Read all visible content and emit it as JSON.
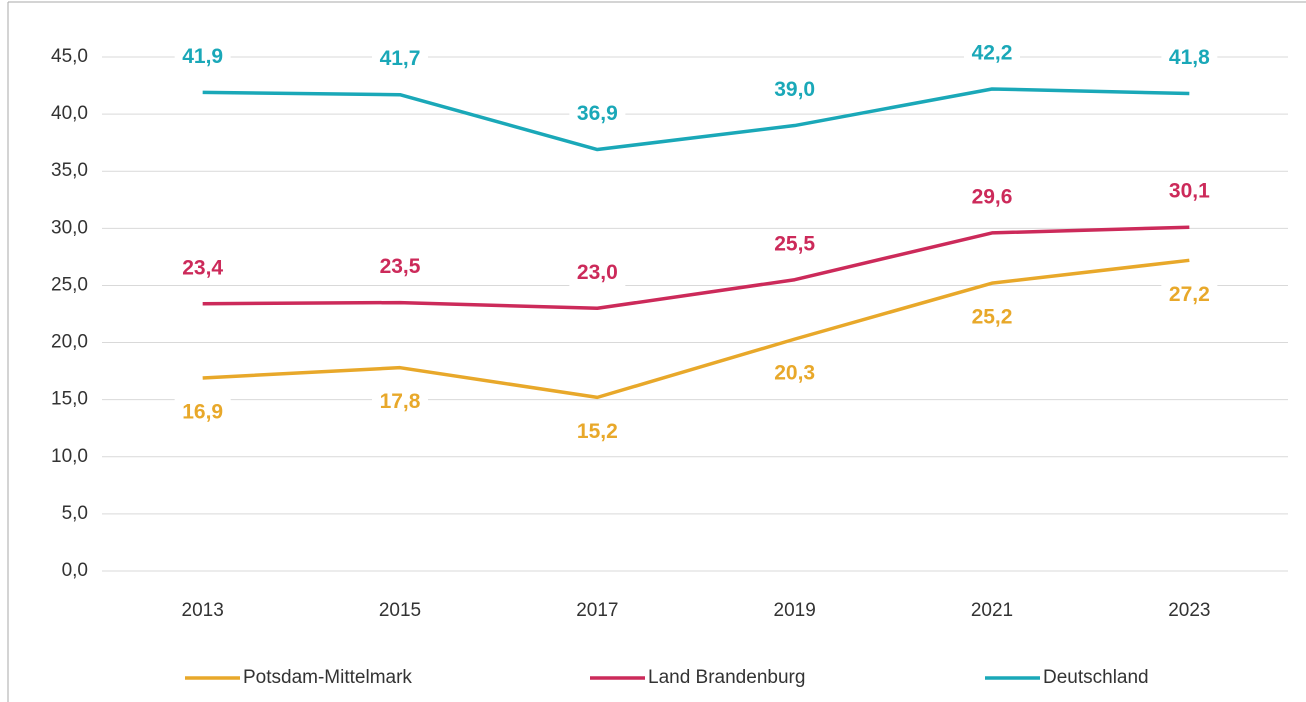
{
  "chart_data": {
    "type": "line",
    "categories": [
      "2013",
      "2015",
      "2017",
      "2019",
      "2021",
      "2023"
    ],
    "series": [
      {
        "name": "Potsdam-Mittelmark",
        "color": "#e8a82a",
        "label_position": "below",
        "values": [
          16.9,
          17.8,
          15.2,
          20.3,
          25.2,
          27.2
        ],
        "value_labels": [
          "16,9",
          "17,8",
          "15,2",
          "20,3",
          "25,2",
          "27,2"
        ]
      },
      {
        "name": "Land Brandenburg",
        "color": "#cc2a5a",
        "label_position": "above",
        "values": [
          23.4,
          23.5,
          23.0,
          25.5,
          29.6,
          30.1
        ],
        "value_labels": [
          "23,4",
          "23,5",
          "23,0",
          "25,5",
          "29,6",
          "30,1"
        ]
      },
      {
        "name": "Deutschland",
        "color": "#1aa8b8",
        "label_position": "above",
        "values": [
          41.9,
          41.7,
          36.9,
          39.0,
          42.2,
          41.8
        ],
        "value_labels": [
          "41,9",
          "41,7",
          "36,9",
          "39,0",
          "42,2",
          "41,8"
        ]
      }
    ],
    "ylim": [
      0,
      45
    ],
    "yticks": [
      {
        "value": 0,
        "label": "0,0"
      },
      {
        "value": 5,
        "label": "5,0"
      },
      {
        "value": 10,
        "label": "10,0"
      },
      {
        "value": 15,
        "label": "15,0"
      },
      {
        "value": 20,
        "label": "20,0"
      },
      {
        "value": 25,
        "label": "25,0"
      },
      {
        "value": 30,
        "label": "30,0"
      },
      {
        "value": 35,
        "label": "35,0"
      },
      {
        "value": 40,
        "label": "40,0"
      },
      {
        "value": 45,
        "label": "45,0"
      }
    ],
    "grid": true,
    "legend": "bottom"
  }
}
